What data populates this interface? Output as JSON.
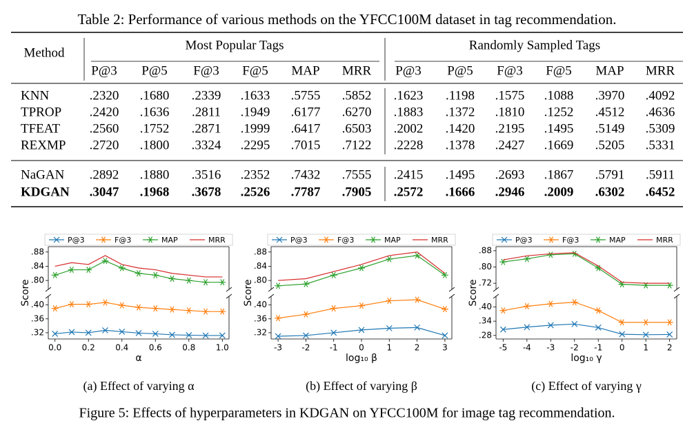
{
  "table": {
    "caption": "Table 2: Performance of various methods on the YFCC100M dataset in tag recommendation.",
    "method_header": "Method",
    "groups": [
      "Most Popular Tags",
      "Randomly Sampled Tags"
    ],
    "columns": [
      "P@3",
      "P@5",
      "F@3",
      "F@5",
      "MAP",
      "MRR",
      "P@3",
      "P@5",
      "F@3",
      "F@5",
      "MAP",
      "MRR"
    ],
    "row_groups": [
      [
        {
          "method": "KNN",
          "values": [
            ".2320",
            ".1680",
            ".2339",
            ".1633",
            ".5755",
            ".5852",
            ".1623",
            ".1198",
            ".1575",
            ".1088",
            ".3970",
            ".4092"
          ]
        },
        {
          "method": "TPROP",
          "values": [
            ".2420",
            ".1636",
            ".2811",
            ".1949",
            ".6177",
            ".6270",
            ".1883",
            ".1372",
            ".1810",
            ".1252",
            ".4512",
            ".4636"
          ]
        },
        {
          "method": "TFEAT",
          "values": [
            ".2560",
            ".1752",
            ".2871",
            ".1999",
            ".6417",
            ".6503",
            ".2002",
            ".1420",
            ".2195",
            ".1495",
            ".5149",
            ".5309"
          ]
        },
        {
          "method": "REXMP",
          "values": [
            ".2720",
            ".1800",
            ".3324",
            ".2295",
            ".7015",
            ".7122",
            ".2228",
            ".1378",
            ".2427",
            ".1669",
            ".5205",
            ".5331"
          ]
        }
      ],
      [
        {
          "method": "NaGAN",
          "values": [
            ".2892",
            ".1880",
            ".3516",
            ".2352",
            ".7432",
            ".7555",
            ".2415",
            ".1495",
            ".2693",
            ".1867",
            ".5791",
            ".5911"
          ]
        },
        {
          "method": "KDGAN",
          "bold": true,
          "values": [
            ".3047",
            ".1968",
            ".3678",
            ".2526",
            ".7787",
            ".7905",
            ".2572",
            ".1666",
            ".2946",
            ".2009",
            ".6302",
            ".6452"
          ]
        }
      ]
    ]
  },
  "chart_data": [
    {
      "type": "line",
      "subcaption": "(a) Effect of varying α",
      "xlabel": "α",
      "ylabel": "Score",
      "x": [
        0,
        0.1,
        0.2,
        0.3,
        0.4,
        0.5,
        0.6,
        0.7,
        0.8,
        0.9,
        1
      ],
      "xlim": [
        -0.04,
        1.04
      ],
      "xticks": [
        {
          "value": 0,
          "label": "0.0"
        },
        0.2,
        0.4,
        0.6,
        0.8,
        {
          "value": 1,
          "label": "1.0"
        }
      ],
      "panels": [
        {
          "ylim": [
            0.775,
            0.895
          ],
          "yticks": [
            {
              "value": 0.8,
              "label": ".80"
            },
            {
              "value": 0.84,
              "label": ".84"
            },
            {
              "value": 0.88,
              "label": ".88"
            }
          ]
        },
        {
          "ylim": [
            0.302,
            0.425
          ],
          "yticks": [
            {
              "value": 0.32,
              "label": ".32"
            },
            {
              "value": 0.36,
              "label": ".36"
            },
            {
              "value": 0.4,
              "label": ".40"
            }
          ]
        }
      ],
      "series": [
        {
          "name": "P@3",
          "color": "#1f77b4",
          "marker": "x",
          "panel": 1,
          "values": [
            0.317,
            0.322,
            0.32,
            0.327,
            0.323,
            0.319,
            0.317,
            0.314,
            0.313,
            0.312,
            0.312
          ]
        },
        {
          "name": "F@3",
          "color": "#ff7f0e",
          "marker": "star",
          "panel": 1,
          "values": [
            0.39,
            0.402,
            0.402,
            0.407,
            0.399,
            0.393,
            0.39,
            0.387,
            0.384,
            0.381,
            0.381
          ]
        },
        {
          "name": "MAP",
          "color": "#2ca02c",
          "marker": "star",
          "panel": 0,
          "values": [
            0.815,
            0.83,
            0.83,
            0.855,
            0.835,
            0.82,
            0.815,
            0.805,
            0.8,
            0.795,
            0.795
          ]
        },
        {
          "name": "MRR",
          "color": "#d62728",
          "marker": "none",
          "panel": 0,
          "values": [
            0.84,
            0.85,
            0.845,
            0.87,
            0.845,
            0.835,
            0.83,
            0.82,
            0.815,
            0.81,
            0.81
          ]
        }
      ]
    },
    {
      "type": "line",
      "subcaption": "(b) Effect of varying β",
      "xlabel": "log₁₀ β",
      "ylabel": "Score",
      "x": [
        -3,
        -2,
        -1,
        0,
        1,
        2,
        3
      ],
      "xlim": [
        -3.25,
        3.25
      ],
      "xticks": [
        -3,
        -2,
        -1,
        0,
        1,
        2,
        3
      ],
      "panels": [
        {
          "ylim": [
            0.775,
            0.895
          ],
          "yticks": [
            {
              "value": 0.8,
              "label": ".80"
            },
            {
              "value": 0.84,
              "label": ".84"
            },
            {
              "value": 0.88,
              "label": ".88"
            }
          ]
        },
        {
          "ylim": [
            0.302,
            0.425
          ],
          "yticks": [
            {
              "value": 0.32,
              "label": ".32"
            },
            {
              "value": 0.36,
              "label": ".36"
            },
            {
              "value": 0.4,
              "label": ".40"
            }
          ]
        }
      ],
      "series": [
        {
          "name": "P@3",
          "color": "#1f77b4",
          "marker": "x",
          "panel": 1,
          "values": [
            0.31,
            0.312,
            0.32,
            0.328,
            0.333,
            0.335,
            0.312
          ]
        },
        {
          "name": "F@3",
          "color": "#ff7f0e",
          "marker": "star",
          "panel": 1,
          "values": [
            0.362,
            0.373,
            0.39,
            0.398,
            0.412,
            0.415,
            0.388
          ]
        },
        {
          "name": "MAP",
          "color": "#2ca02c",
          "marker": "star",
          "panel": 0,
          "values": [
            0.785,
            0.79,
            0.815,
            0.835,
            0.86,
            0.87,
            0.815
          ]
        },
        {
          "name": "MRR",
          "color": "#d62728",
          "marker": "none",
          "panel": 0,
          "values": [
            0.8,
            0.805,
            0.825,
            0.845,
            0.87,
            0.88,
            0.82
          ]
        }
      ]
    },
    {
      "type": "line",
      "subcaption": "(c) Effect of varying γ",
      "xlabel": "log₁₀ γ",
      "ylabel": "Score",
      "x": [
        -5,
        -4,
        -3,
        -2,
        -1,
        0,
        1,
        2
      ],
      "xlim": [
        -5.3,
        2.3
      ],
      "xticks": [
        -5,
        -4,
        -3,
        -2,
        -1,
        0,
        1,
        2
      ],
      "panels": [
        {
          "ylim": [
            0.69,
            0.9
          ],
          "yticks": [
            {
              "value": 0.72,
              "label": ".72"
            },
            {
              "value": 0.8,
              "label": ".80"
            },
            {
              "value": 0.88,
              "label": ".88"
            }
          ]
        },
        {
          "ylim": [
            0.265,
            0.445
          ],
          "yticks": [
            {
              "value": 0.28,
              "label": ".28"
            },
            {
              "value": 0.34,
              "label": ".34"
            },
            {
              "value": 0.4,
              "label": ".40"
            }
          ]
        }
      ],
      "series": [
        {
          "name": "P@3",
          "color": "#1f77b4",
          "marker": "x",
          "panel": 1,
          "values": [
            0.305,
            0.315,
            0.323,
            0.328,
            0.313,
            0.285,
            0.283,
            0.284
          ]
        },
        {
          "name": "F@3",
          "color": "#ff7f0e",
          "marker": "star",
          "panel": 1,
          "values": [
            0.385,
            0.403,
            0.413,
            0.42,
            0.385,
            0.335,
            0.335,
            0.335
          ]
        },
        {
          "name": "MAP",
          "color": "#2ca02c",
          "marker": "star",
          "panel": 0,
          "values": [
            0.825,
            0.84,
            0.86,
            0.865,
            0.795,
            0.715,
            0.71,
            0.71
          ]
        },
        {
          "name": "MRR",
          "color": "#d62728",
          "marker": "none",
          "panel": 0,
          "values": [
            0.835,
            0.855,
            0.865,
            0.87,
            0.805,
            0.725,
            0.72,
            0.72
          ]
        }
      ]
    }
  ],
  "figure_caption": "Figure 5: Effects of hyperparameters in KDGAN on YFCC100M for image tag recommendation."
}
